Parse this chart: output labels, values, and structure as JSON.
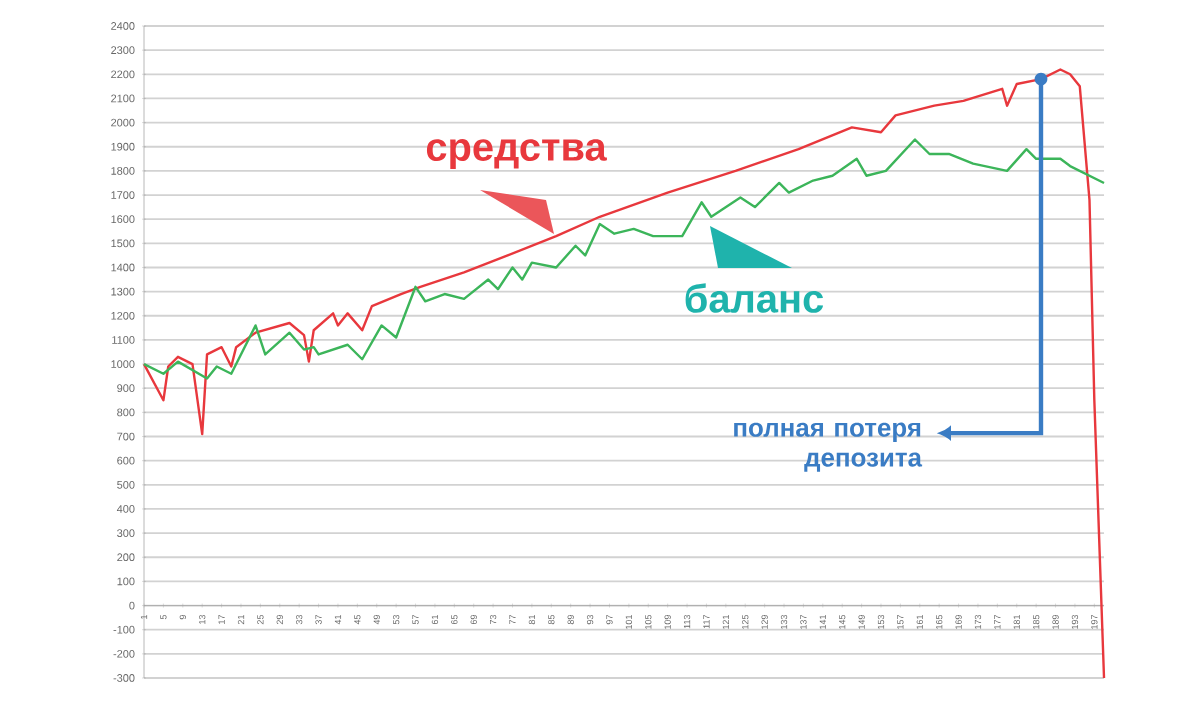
{
  "chart_data": {
    "type": "line",
    "xlim": [
      1,
      199
    ],
    "xticks": [
      1,
      5,
      9,
      13,
      17,
      21,
      25,
      29,
      33,
      37,
      41,
      45,
      49,
      53,
      57,
      61,
      65,
      69,
      73,
      77,
      81,
      85,
      89,
      93,
      97,
      101,
      105,
      109,
      113,
      117,
      121,
      125,
      129,
      133,
      137,
      141,
      145,
      149,
      153,
      157,
      161,
      165,
      169,
      173,
      177,
      181,
      185,
      189,
      193,
      197
    ],
    "ylim": [
      -300,
      2400
    ],
    "yticks": [
      -300,
      -200,
      -100,
      0,
      100,
      200,
      300,
      400,
      500,
      600,
      700,
      800,
      900,
      1000,
      1100,
      1200,
      1300,
      1400,
      1500,
      1600,
      1700,
      1800,
      1900,
      2000,
      2100,
      2200,
      2300,
      2400
    ],
    "grid": "y",
    "legend": false,
    "series": [
      {
        "name": "средства",
        "color": "#e8383d",
        "x": [
          1,
          5,
          6,
          8,
          11,
          13,
          14,
          17,
          19,
          20,
          24,
          31,
          34,
          35,
          36,
          40,
          41,
          43,
          46,
          48,
          54,
          58,
          67,
          76,
          86,
          95,
          109,
          123,
          136,
          147,
          153,
          156,
          164,
          170,
          178,
          179,
          181,
          186,
          190,
          192,
          194,
          196,
          197,
          199
        ],
        "values": [
          1000,
          850,
          990,
          1030,
          1000,
          710,
          1040,
          1070,
          990,
          1070,
          1130,
          1170,
          1120,
          1010,
          1140,
          1210,
          1160,
          1210,
          1140,
          1240,
          1290,
          1320,
          1380,
          1450,
          1530,
          1610,
          1710,
          1800,
          1890,
          1980,
          1960,
          2030,
          2070,
          2090,
          2140,
          2070,
          2160,
          2180,
          2220,
          2200,
          2150,
          1680,
          850,
          -300
        ]
      },
      {
        "name": "баланс",
        "color": "#3cb55a",
        "x": [
          1,
          5,
          8,
          14,
          16,
          19,
          24,
          26,
          31,
          34,
          36,
          37,
          43,
          46,
          50,
          53,
          57,
          59,
          63,
          67,
          72,
          74,
          77,
          79,
          81,
          86,
          90,
          92,
          95,
          98,
          102,
          106,
          112,
          116,
          118,
          124,
          127,
          132,
          134,
          139,
          143,
          148,
          150,
          154,
          160,
          163,
          167,
          172,
          179,
          183,
          185,
          190,
          192,
          199
        ],
        "values": [
          1000,
          960,
          1010,
          940,
          990,
          960,
          1160,
          1040,
          1130,
          1060,
          1070,
          1040,
          1080,
          1020,
          1160,
          1110,
          1320,
          1260,
          1290,
          1270,
          1350,
          1310,
          1400,
          1350,
          1420,
          1400,
          1490,
          1450,
          1580,
          1540,
          1560,
          1530,
          1530,
          1670,
          1610,
          1690,
          1650,
          1750,
          1710,
          1760,
          1780,
          1850,
          1780,
          1800,
          1930,
          1870,
          1870,
          1830,
          1800,
          1890,
          1850,
          1850,
          1820,
          1750
        ]
      }
    ],
    "annotations": [
      {
        "text": "полная потеря депозита",
        "x": 186,
        "y": 2180
      }
    ]
  }
}
